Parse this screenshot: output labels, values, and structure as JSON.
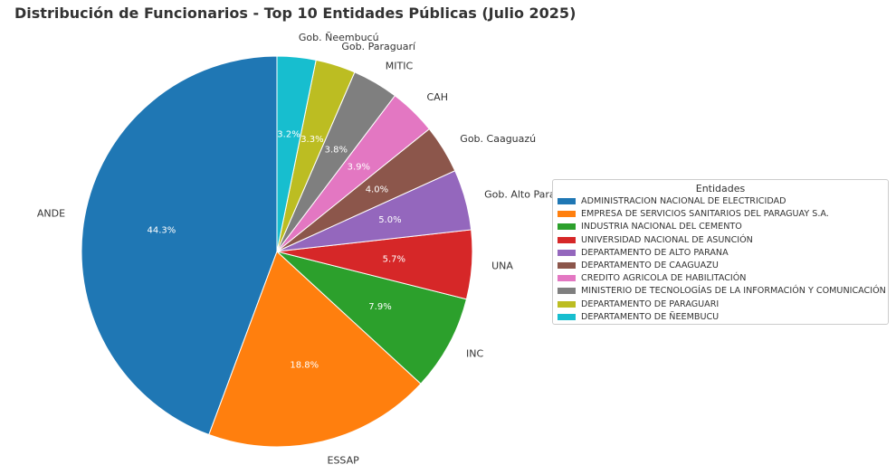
{
  "chart_data": {
    "type": "pie",
    "title": "Distribución de Funcionarios - Top 10 Entidades Públicas (Julio 2025)",
    "start_angle_deg": 90,
    "direction": "counterclockwise",
    "slices": [
      {
        "label": "ANDE",
        "value": 44.3,
        "pct_label": "44.3%",
        "color": "#1f77b4"
      },
      {
        "label": "ESSAP",
        "value": 18.8,
        "pct_label": "18.8%",
        "color": "#ff7f0e"
      },
      {
        "label": "INC",
        "value": 7.9,
        "pct_label": "7.9%",
        "color": "#2ca02c"
      },
      {
        "label": "UNA",
        "value": 5.7,
        "pct_label": "5.7%",
        "color": "#d62728"
      },
      {
        "label": "Gob. Alto Paraná",
        "value": 5.0,
        "pct_label": "5.0%",
        "color": "#9467bd"
      },
      {
        "label": "Gob. Caaguazú",
        "value": 4.0,
        "pct_label": "4.0%",
        "color": "#8c564b"
      },
      {
        "label": "CAH",
        "value": 3.9,
        "pct_label": "3.9%",
        "color": "#e377c2"
      },
      {
        "label": "MITIC",
        "value": 3.8,
        "pct_label": "3.8%",
        "color": "#7f7f7f"
      },
      {
        "label": "Gob. Paraguarí",
        "value": 3.3,
        "pct_label": "3.3%",
        "color": "#bcbd22"
      },
      {
        "label": "Gob. Ñeembucú",
        "value": 3.2,
        "pct_label": "3.2%",
        "color": "#17becf"
      }
    ],
    "legend": {
      "title": "Entidades",
      "placement": "right",
      "entries": [
        "ADMINISTRACION NACIONAL DE ELECTRICIDAD",
        "EMPRESA DE SERVICIOS SANITARIOS DEL PARAGUAY S.A.",
        "INDUSTRIA NACIONAL DEL CEMENTO",
        "UNIVERSIDAD NACIONAL DE ASUNCIÓN",
        "DEPARTAMENTO DE ALTO PARANA",
        "DEPARTAMENTO DE CAAGUAZU",
        "CREDITO AGRICOLA DE HABILITACIÓN",
        "MINISTERIO DE TECNOLOGÍAS DE LA INFORMACIÓN Y COMUNICACIÓN",
        "DEPARTAMENTO DE PARAGUARI",
        "DEPARTAMENTO DE ÑEEMBUCU"
      ]
    }
  }
}
